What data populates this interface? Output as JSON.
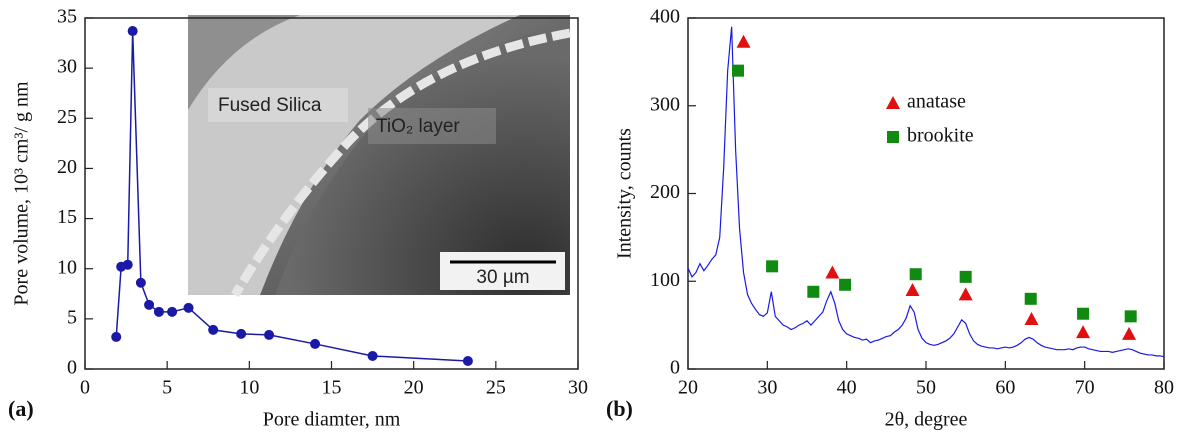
{
  "chart_data": [
    {
      "type": "line",
      "panel_label": "(a)",
      "xlabel": "Pore diamter, nm",
      "ylabel": "Pore volume, 10³ cm³/ g nm",
      "x": [
        1.9,
        2.2,
        2.6,
        2.9,
        3.4,
        3.9,
        4.5,
        5.3,
        6.3,
        7.8,
        9.5,
        11.2,
        14,
        17.5,
        23.3
      ],
      "values": [
        3.2,
        10.2,
        10.4,
        33.7,
        8.6,
        6.4,
        5.7,
        5.7,
        6.1,
        3.9,
        3.5,
        3.4,
        2.5,
        1.3,
        0.8
      ],
      "color": "#1a1aa6",
      "markers": true,
      "xlim": [
        0,
        30
      ],
      "xticks": [
        0,
        5,
        10,
        15,
        20,
        25,
        30
      ],
      "ylim": [
        0,
        35
      ],
      "yticks": [
        0,
        5,
        10,
        15,
        20,
        25,
        30,
        35
      ],
      "inset": {
        "labels": [
          "Fused Silica",
          "TiO₂ layer"
        ],
        "scale_bar": "30 µm"
      }
    },
    {
      "type": "line",
      "panel_label": "(b)",
      "xlabel": "2θ, degree",
      "ylabel": "Intensity, counts",
      "x": [
        20,
        20.5,
        21,
        21.5,
        22,
        22.5,
        23,
        23.5,
        24,
        24.5,
        25,
        25.5,
        26,
        26.5,
        27,
        27.5,
        28,
        28.5,
        29,
        29.5,
        30,
        30.5,
        31,
        31.5,
        32,
        32.5,
        33,
        33.5,
        34,
        34.5,
        35,
        35.5,
        36,
        36.5,
        37,
        37.5,
        38,
        38.5,
        39,
        39.5,
        40,
        40.5,
        41,
        41.5,
        42,
        42.5,
        43,
        43.5,
        44,
        44.5,
        45,
        45.5,
        46,
        46.5,
        47,
        47.5,
        48,
        48.5,
        49,
        49.5,
        50,
        50.5,
        51,
        51.5,
        52,
        52.5,
        53,
        53.5,
        54,
        54.5,
        55,
        55.5,
        56,
        56.5,
        57,
        57.5,
        58,
        58.5,
        59,
        59.5,
        60,
        60.5,
        61,
        61.5,
        62,
        62.5,
        63,
        63.5,
        64,
        64.5,
        65,
        65.5,
        66,
        66.5,
        67,
        67.5,
        68,
        68.5,
        69,
        69.5,
        70,
        70.5,
        71,
        71.5,
        72,
        72.5,
        73,
        73.5,
        74,
        74.5,
        75,
        75.5,
        76,
        76.5,
        77,
        77.5,
        78,
        78.5,
        79,
        79.5,
        80
      ],
      "values": [
        115,
        105,
        110,
        120,
        112,
        118,
        125,
        130,
        150,
        230,
        340,
        390,
        250,
        160,
        110,
        85,
        75,
        68,
        62,
        60,
        64,
        88,
        60,
        55,
        50,
        48,
        45,
        47,
        50,
        52,
        55,
        50,
        55,
        60,
        65,
        78,
        88,
        75,
        55,
        45,
        40,
        38,
        36,
        35,
        33,
        34,
        30,
        32,
        33,
        35,
        37,
        38,
        42,
        45,
        50,
        58,
        72,
        65,
        45,
        35,
        30,
        28,
        27,
        28,
        30,
        32,
        35,
        40,
        48,
        56,
        52,
        40,
        32,
        28,
        26,
        25,
        24,
        24,
        23,
        24,
        25,
        24,
        25,
        27,
        30,
        34,
        36,
        34,
        30,
        27,
        25,
        24,
        23,
        22,
        22,
        22,
        23,
        22,
        24,
        25,
        25,
        23,
        22,
        21,
        20,
        20,
        20,
        19,
        20,
        21,
        22,
        23,
        22,
        20,
        18,
        17,
        16,
        16,
        15,
        15,
        14
      ],
      "color": "#1a1ae6",
      "markers": false,
      "xlim": [
        20,
        80
      ],
      "xticks": [
        20,
        30,
        40,
        50,
        60,
        70,
        80
      ],
      "ylim": [
        0,
        400
      ],
      "yticks": [
        0,
        100,
        200,
        300,
        400
      ],
      "peaks": [
        {
          "name": "anatase",
          "color": "#e01010",
          "marker": "triangle",
          "x": [
            27,
            38.2,
            48.3,
            55,
            63.3,
            69.8,
            75.6
          ],
          "values": [
            373,
            110,
            90,
            85,
            57,
            42,
            40
          ]
        },
        {
          "name": "brookite",
          "color": "#108a10",
          "marker": "square",
          "x": [
            26.3,
            30.6,
            35.8,
            39.8,
            48.7,
            55,
            63.2,
            69.8,
            75.8
          ],
          "values": [
            340,
            117,
            88,
            96,
            108,
            105,
            80,
            63,
            60
          ]
        }
      ]
    }
  ]
}
